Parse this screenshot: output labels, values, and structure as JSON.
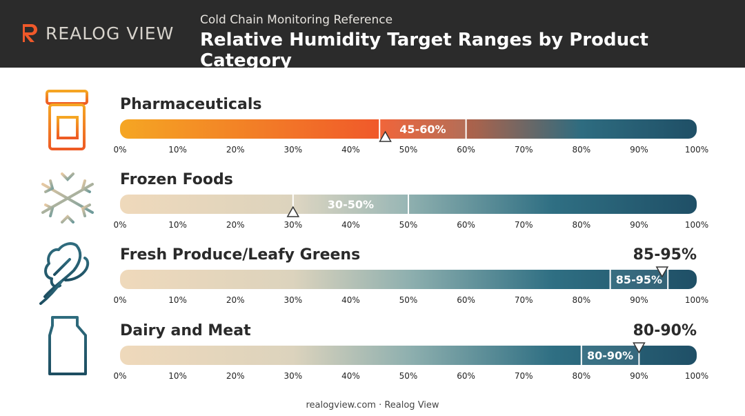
{
  "header": {
    "brand": "REALOG VIEW",
    "subtitle": "Cold Chain Monitoring Reference",
    "title": "Relative Humidity Target Ranges by Product Category"
  },
  "chart_data": {
    "type": "bar",
    "title": "Relative Humidity Target Ranges by Product Category",
    "xlabel": "",
    "ylabel": "",
    "xlim": [
      0,
      100
    ],
    "ticks": [
      "0%",
      "10%",
      "20%",
      "30%",
      "40%",
      "50%",
      "60%",
      "70%",
      "80%",
      "90%",
      "100%"
    ],
    "categories": [
      {
        "name": "Pharmaceuticals",
        "icon": "pill-bottle-icon",
        "low": 45,
        "high": 60,
        "marker": 46,
        "label": "45-60%",
        "callout": ""
      },
      {
        "name": "Frozen Foods",
        "icon": "snowflake-icon",
        "low": 30,
        "high": 50,
        "marker": 30,
        "label": "30-50%",
        "callout": ""
      },
      {
        "name": "Fresh Produce/Leafy Greens",
        "icon": "leafy-greens-icon",
        "low": 85,
        "high": 95,
        "marker": 94,
        "label": "85-95%",
        "callout": "85-95%"
      },
      {
        "name": "Dairy and Meat",
        "icon": "milk-carton-icon",
        "low": 80,
        "high": 90,
        "marker": 90,
        "label": "80-90%",
        "callout": "80-90%"
      }
    ]
  },
  "footer": {
    "text": "realogview.com  ·  Realog View"
  },
  "colors": {
    "header_bg": "#2b2b2b",
    "accent_orange": "#f0592a",
    "teal": "#1f5a73",
    "beige": "#efd9bb"
  }
}
